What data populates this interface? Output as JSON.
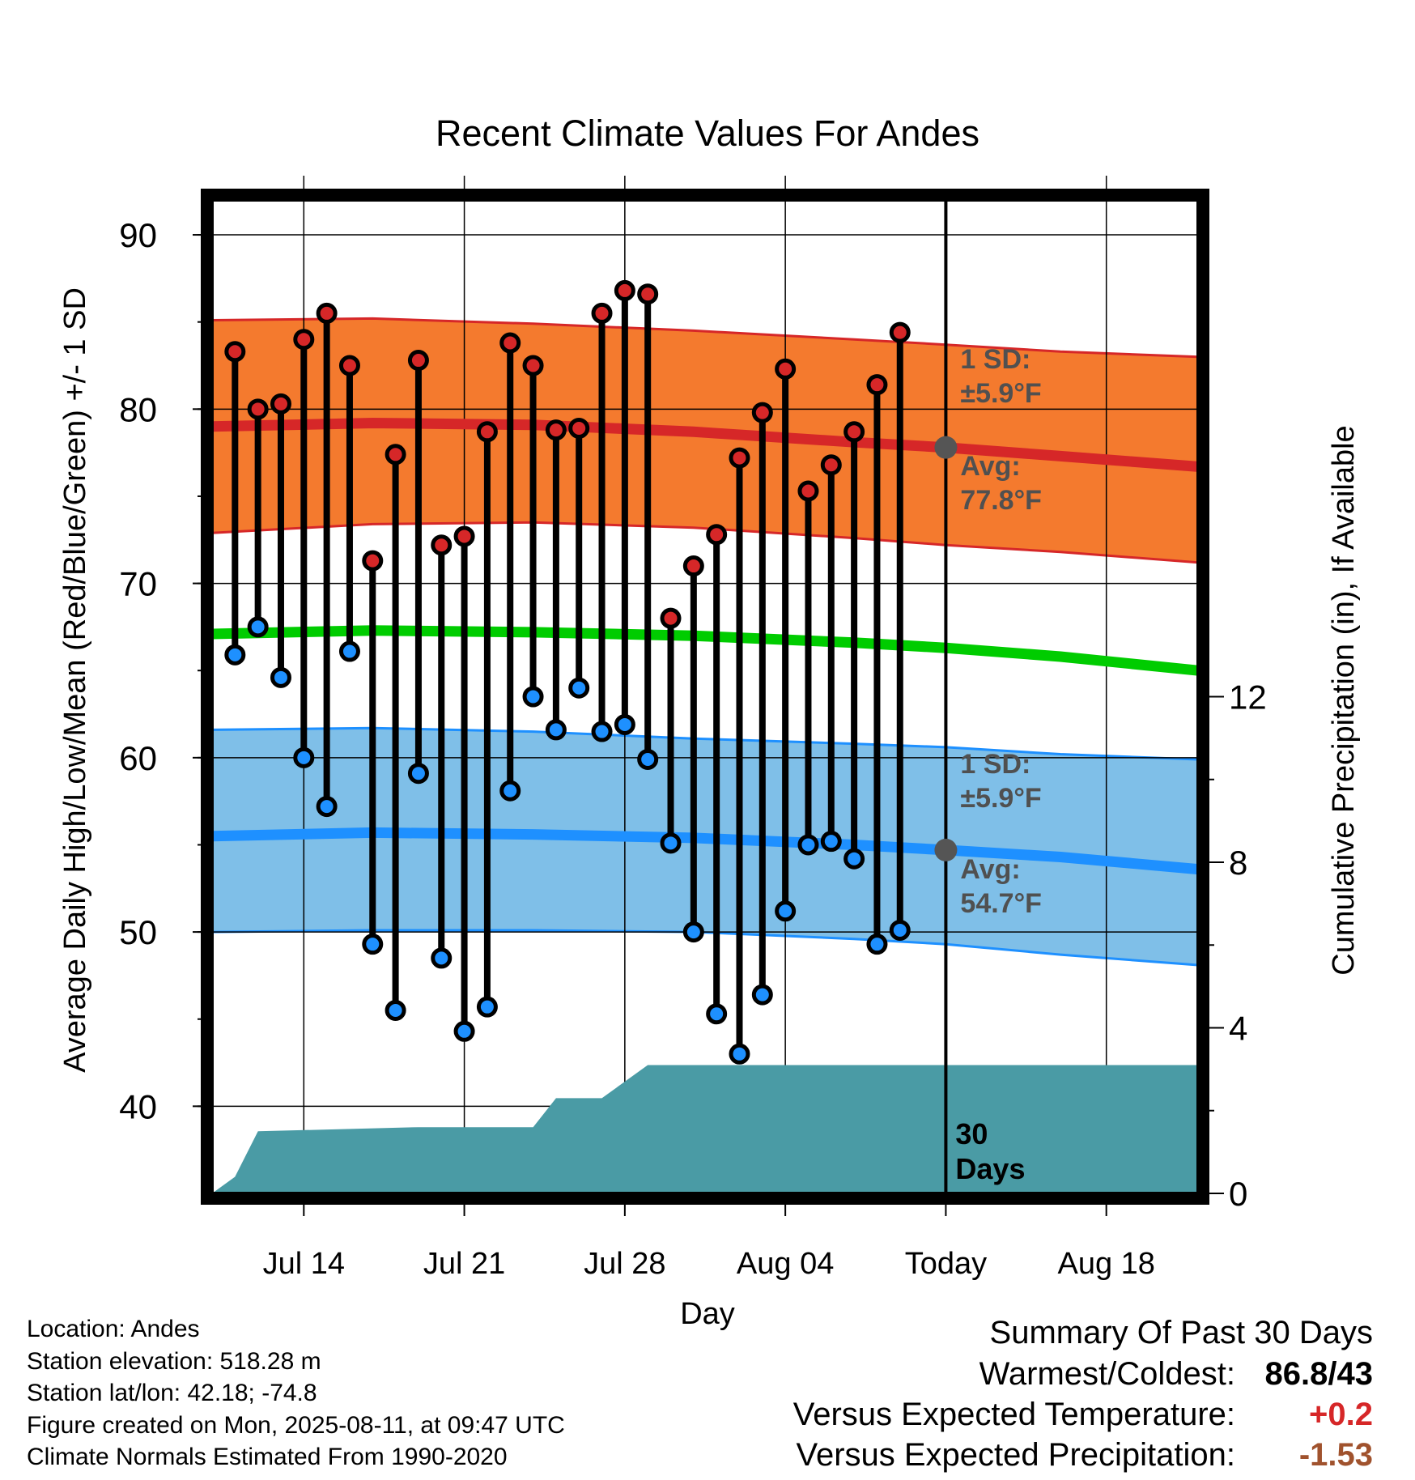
{
  "chart_data": {
    "type": "line",
    "title": "Recent Climate Values For Andes",
    "xlabel": "Day",
    "ylabel": "Average Daily High/Low/Mean (Red/Blue/Green) +/- 1 SD",
    "y2label": "Cumulative Precipitation (in), If Available",
    "ylim": [
      35,
      92
    ],
    "y2lim": [
      0,
      24
    ],
    "yticks": [
      "90",
      "80",
      "70",
      "60",
      "50",
      "40"
    ],
    "y2ticks": [
      "12",
      "8",
      "4",
      "0"
    ],
    "xlim": [
      "2025-07-10",
      "2025-08-22"
    ],
    "xtick_labels": [
      {
        "date": "2025-07-14",
        "label": "Jul 14"
      },
      {
        "date": "2025-07-21",
        "label": "Jul 21"
      },
      {
        "date": "2025-07-28",
        "label": "Jul 28"
      },
      {
        "date": "2025-08-04",
        "label": "Aug 04"
      },
      {
        "date": "2025-08-11",
        "label": "Today"
      },
      {
        "date": "2025-08-18",
        "label": "Aug 18"
      }
    ],
    "grid": true,
    "today": "2025-08-11",
    "colors": {
      "high_mean": "#d62728",
      "high_band": "#f47a2e",
      "low_mean": "#1e90ff",
      "low_band": "#7fbfe8",
      "mean": "#00cc00",
      "precip": "#4a9ba5",
      "high_marker": "#d62728",
      "low_marker": "#1e90ff"
    },
    "normals": [
      {
        "date": "2025-07-10",
        "high_avg": 79.0,
        "low_avg": 55.5,
        "mean_avg": 67.1,
        "high_sd_upper": 85.1,
        "high_sd_lower": 72.9,
        "low_sd_upper": 61.6,
        "low_sd_lower": 50.0
      },
      {
        "date": "2025-07-17",
        "high_avg": 79.2,
        "low_avg": 55.7,
        "mean_avg": 67.3,
        "high_sd_upper": 85.2,
        "high_sd_lower": 73.4,
        "low_sd_upper": 61.7,
        "low_sd_lower": 50.1
      },
      {
        "date": "2025-07-24",
        "high_avg": 79.1,
        "low_avg": 55.6,
        "mean_avg": 67.2,
        "high_sd_upper": 84.9,
        "high_sd_lower": 73.5,
        "low_sd_upper": 61.5,
        "low_sd_lower": 50.1
      },
      {
        "date": "2025-07-31",
        "high_avg": 78.7,
        "low_avg": 55.4,
        "mean_avg": 67.0,
        "high_sd_upper": 84.5,
        "high_sd_lower": 73.2,
        "low_sd_upper": 61.1,
        "low_sd_lower": 50.0
      },
      {
        "date": "2025-08-07",
        "high_avg": 78.1,
        "low_avg": 55.0,
        "mean_avg": 66.6,
        "high_sd_upper": 84.0,
        "high_sd_lower": 72.6,
        "low_sd_upper": 60.8,
        "low_sd_lower": 49.6
      },
      {
        "date": "2025-08-11",
        "high_avg": 77.8,
        "low_avg": 54.7,
        "mean_avg": 66.3,
        "high_sd_upper": 83.7,
        "high_sd_lower": 72.2,
        "low_sd_upper": 60.6,
        "low_sd_lower": 49.3
      },
      {
        "date": "2025-08-16",
        "high_avg": 77.3,
        "low_avg": 54.3,
        "mean_avg": 65.8,
        "high_sd_upper": 83.3,
        "high_sd_lower": 71.8,
        "low_sd_upper": 60.2,
        "low_sd_lower": 48.7
      },
      {
        "date": "2025-08-22",
        "high_avg": 76.7,
        "low_avg": 53.6,
        "mean_avg": 65.0,
        "high_sd_upper": 83.0,
        "high_sd_lower": 71.2,
        "low_sd_upper": 59.9,
        "low_sd_lower": 48.1
      }
    ],
    "daily": [
      {
        "date": "2025-07-11",
        "high": 83.3,
        "low": 65.9
      },
      {
        "date": "2025-07-12",
        "high": 80.0,
        "low": 67.5
      },
      {
        "date": "2025-07-13",
        "high": 80.3,
        "low": 64.6
      },
      {
        "date": "2025-07-14",
        "high": 84.0,
        "low": 60.0
      },
      {
        "date": "2025-07-15",
        "high": 85.5,
        "low": 57.2
      },
      {
        "date": "2025-07-16",
        "high": 82.5,
        "low": 66.1
      },
      {
        "date": "2025-07-17",
        "high": 71.3,
        "low": 49.3
      },
      {
        "date": "2025-07-18",
        "high": 77.4,
        "low": 45.5
      },
      {
        "date": "2025-07-19",
        "high": 82.8,
        "low": 59.1
      },
      {
        "date": "2025-07-20",
        "high": 72.2,
        "low": 48.5
      },
      {
        "date": "2025-07-21",
        "high": 72.7,
        "low": 44.3
      },
      {
        "date": "2025-07-22",
        "high": 78.7,
        "low": 45.7
      },
      {
        "date": "2025-07-23",
        "high": 83.8,
        "low": 58.1
      },
      {
        "date": "2025-07-24",
        "high": 82.5,
        "low": 63.5
      },
      {
        "date": "2025-07-25",
        "high": 78.8,
        "low": 61.6
      },
      {
        "date": "2025-07-26",
        "high": 78.9,
        "low": 64.0
      },
      {
        "date": "2025-07-27",
        "high": 85.5,
        "low": 61.5
      },
      {
        "date": "2025-07-28",
        "high": 86.8,
        "low": 61.9
      },
      {
        "date": "2025-07-29",
        "high": 86.6,
        "low": 59.9
      },
      {
        "date": "2025-07-30",
        "high": 68.0,
        "low": 55.1
      },
      {
        "date": "2025-07-31",
        "high": 71.0,
        "low": 50.0
      },
      {
        "date": "2025-08-01",
        "high": 72.8,
        "low": 45.3
      },
      {
        "date": "2025-08-02",
        "high": 77.2,
        "low": 43.0
      },
      {
        "date": "2025-08-03",
        "high": 79.8,
        "low": 46.4
      },
      {
        "date": "2025-08-04",
        "high": 82.3,
        "low": 51.2
      },
      {
        "date": "2025-08-05",
        "high": 75.3,
        "low": 55.0
      },
      {
        "date": "2025-08-06",
        "high": 76.8,
        "low": 55.2
      },
      {
        "date": "2025-08-07",
        "high": 78.7,
        "low": 54.2
      },
      {
        "date": "2025-08-08",
        "high": 81.4,
        "low": 49.3
      },
      {
        "date": "2025-08-09",
        "high": 84.4,
        "low": 50.1
      }
    ],
    "precip_cumulative": [
      {
        "date": "2025-07-10",
        "value": 0.0
      },
      {
        "date": "2025-07-11",
        "value": 0.4
      },
      {
        "date": "2025-07-12",
        "value": 1.5
      },
      {
        "date": "2025-07-19",
        "value": 1.6
      },
      {
        "date": "2025-07-24",
        "value": 1.6
      },
      {
        "date": "2025-07-25",
        "value": 2.3
      },
      {
        "date": "2025-07-27",
        "value": 2.3
      },
      {
        "date": "2025-07-29",
        "value": 3.1
      },
      {
        "date": "2025-08-22",
        "value": 3.1
      }
    ],
    "annotations": {
      "high_sd_label": "1 SD:",
      "high_sd_value": "±5.9°F",
      "high_avg_label": "Avg:",
      "high_avg_value": "77.8°F",
      "low_sd_label": "1 SD:",
      "low_sd_value": "±5.9°F",
      "low_avg_label": "Avg:",
      "low_avg_value": "54.7°F",
      "days_number": "30",
      "days_label": "Days"
    }
  },
  "info": {
    "location": "Location: Andes",
    "elevation": "Station elevation: 518.28 m",
    "latlon": "Station lat/lon: 42.18; -74.8",
    "created": "Figure created on Mon, 2025-08-11, at 09:47 UTC",
    "normals": "Climate Normals Estimated From 1990-2020"
  },
  "summary": {
    "title": "Summary Of Past 30 Days",
    "warmest_label": "Warmest/Coldest:",
    "warmest_value": "86.8/43",
    "temp_label": "Versus Expected Temperature:",
    "temp_value": "+0.2",
    "temp_color": "#d62728",
    "precip_label": "Versus Expected Precipitation:",
    "precip_value": "-1.53",
    "precip_color": "#a0522d"
  }
}
